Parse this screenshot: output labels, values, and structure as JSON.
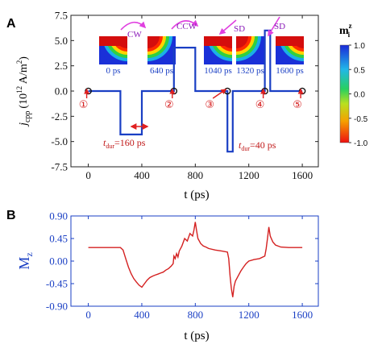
{
  "panels": [
    {
      "letter": "A"
    },
    {
      "letter": "B"
    }
  ],
  "colorbar": {
    "title": "m",
    "title_sup": "z",
    "title_sub": "i",
    "ticks": [
      "1.0",
      "0.5",
      "0.0",
      "-0.5",
      "-1.0"
    ]
  },
  "chart_data": [
    {
      "type": "line",
      "panel": "A",
      "xlabel": "t (ps)",
      "ylabel": "j_cpp (10^12 A/m^2)",
      "ylabel_main": "j",
      "ylabel_sub": "cpp",
      "ylabel_units": "(10",
      "ylabel_exp": "12",
      "ylabel_units2": " A/m",
      "ylabel_exp2": "2",
      "ylabel_close": ")",
      "xlim": [
        -130,
        1720
      ],
      "ylim": [
        -7.5,
        7.5
      ],
      "xticks": [
        0,
        400,
        800,
        1200,
        1600
      ],
      "yticks": [
        7.5,
        5.0,
        2.5,
        0.0,
        -2.5,
        -5.0,
        -7.5
      ],
      "ytick_labels": [
        "7.5",
        "5.0",
        "2.5",
        "0.0",
        "-2.5",
        "-5.0",
        "-7.5"
      ],
      "series": [
        {
          "color": "#1a3fc4",
          "x": [
            0,
            240,
            240,
            400,
            400,
            640,
            640,
            800,
            800,
            1040,
            1040,
            1080,
            1080,
            1320,
            1320,
            1360,
            1360,
            1600
          ],
          "y": [
            0,
            0,
            -4.3,
            -4.3,
            0,
            0,
            4.3,
            4.3,
            0,
            0,
            -6.0,
            -6.0,
            0,
            0,
            6.0,
            6.0,
            0,
            0
          ]
        }
      ],
      "markers": [
        {
          "x": 0,
          "y": 0,
          "label": "①"
        },
        {
          "x": 640,
          "y": 0,
          "label": "②"
        },
        {
          "x": 1040,
          "y": 0,
          "label": "③"
        },
        {
          "x": 1320,
          "y": 0,
          "label": "④"
        },
        {
          "x": 1600,
          "y": 0,
          "label": "⑤"
        }
      ],
      "snapshots": [
        {
          "time": "0 ps",
          "t": 0
        },
        {
          "time": "640 ps",
          "t": 640
        },
        {
          "time": "1040 ps",
          "t": 1040
        },
        {
          "time": "1320 ps",
          "t": 1320
        },
        {
          "time": "1600 ps",
          "t": 1600
        }
      ],
      "annotations": {
        "cw": "CW",
        "ccw": "CCW",
        "sd1": "SD",
        "sd2": "SD",
        "tdur1_main": "t",
        "tdur1_sub": "dur",
        "tdur1_val": "=160 ps",
        "tdur2_main": "t",
        "tdur2_sub": "dur",
        "tdur2_val": "=40 ps"
      }
    },
    {
      "type": "line",
      "panel": "B",
      "xlabel": "t (ps)",
      "ylabel": "Mz",
      "ylabel_main": "M",
      "ylabel_sub": "z",
      "xlim": [
        -130,
        1720
      ],
      "ylim": [
        -0.9,
        0.9
      ],
      "xticks": [
        0,
        400,
        800,
        1200,
        1600
      ],
      "yticks": [
        0.9,
        0.45,
        0.0,
        -0.45,
        -0.9
      ],
      "ytick_labels": [
        "0.90",
        "0.45",
        "0.00",
        "-0.45",
        "-0.90"
      ],
      "series": [
        {
          "color": "#d42020",
          "x": [
            0,
            240,
            260,
            280,
            300,
            320,
            340,
            360,
            380,
            400,
            420,
            440,
            460,
            480,
            500,
            520,
            540,
            560,
            580,
            600,
            620,
            635,
            640,
            650,
            660,
            670,
            680,
            700,
            720,
            740,
            760,
            780,
            790,
            800,
            810,
            820,
            840,
            860,
            880,
            900,
            950,
            1000,
            1040,
            1050,
            1060,
            1070,
            1080,
            1090,
            1100,
            1120,
            1140,
            1160,
            1180,
            1200,
            1240,
            1280,
            1320,
            1330,
            1340,
            1350,
            1360,
            1380,
            1400,
            1440,
            1500,
            1550,
            1600
          ],
          "y": [
            0.27,
            0.27,
            0.22,
            0.05,
            -0.12,
            -0.25,
            -0.35,
            -0.42,
            -0.48,
            -0.52,
            -0.45,
            -0.38,
            -0.33,
            -0.3,
            -0.28,
            -0.26,
            -0.24,
            -0.22,
            -0.18,
            -0.15,
            -0.1,
            -0.05,
            0.1,
            0.05,
            0.15,
            0.08,
            0.2,
            0.3,
            0.45,
            0.4,
            0.55,
            0.5,
            0.62,
            0.78,
            0.6,
            0.45,
            0.35,
            0.3,
            0.28,
            0.25,
            0.22,
            0.2,
            0.18,
            0.05,
            -0.3,
            -0.55,
            -0.72,
            -0.5,
            -0.4,
            -0.3,
            -0.2,
            -0.12,
            -0.05,
            0.0,
            0.03,
            0.05,
            0.1,
            0.25,
            0.45,
            0.68,
            0.5,
            0.38,
            0.32,
            0.28,
            0.27,
            0.27,
            0.27
          ]
        }
      ]
    }
  ]
}
